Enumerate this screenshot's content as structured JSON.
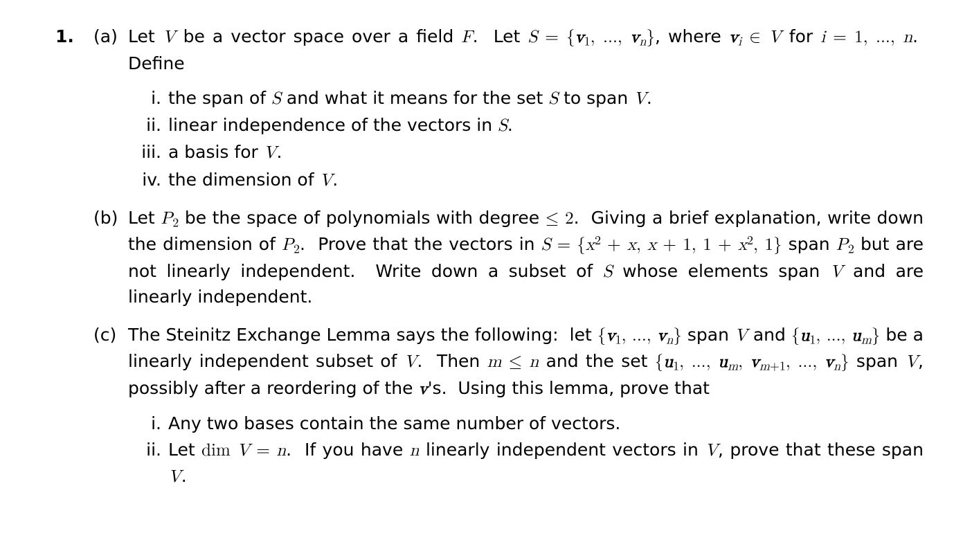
{
  "number": "1.",
  "parts": {
    "a": {
      "label": "(a)",
      "intro_html": "Let <span class='it'>V</span> be a vector space over a field <span class='it'>F</span>.&nbsp; Let <span class='it'>S</span> <span class='rm-math'>=</span> <span class='rm-math'>{</span><span class='bi'>v</span><sub class='nrm'>1</sub><span class='rm-math'>, ..., </span><span class='bi'>v</span><sub>n</sub><span class='rm-math'>}</span>, where <span class='bi'>v</span><sub>i</sub> <span class='rm-math'>&isin;</span> <span class='it'>V</span> for <span class='it'>i</span> <span class='rm-math'>= 1, ..., </span><span class='it'>n</span>.&nbsp; Define",
      "items": {
        "i": {
          "label": "i.",
          "html": "the span of <span class='it'>S</span> and what it means for the set <span class='it'>S</span> to span <span class='it'>V</span>."
        },
        "ii": {
          "label": "ii.",
          "html": "linear independence of the vectors in <span class='it'>S</span>."
        },
        "iii": {
          "label": "iii.",
          "html": "a basis for <span class='it'>V</span>."
        },
        "iv": {
          "label": "iv.",
          "html": "the dimension of <span class='it'>V</span>."
        }
      }
    },
    "b": {
      "label": "(b)",
      "html": "Let <span class='it'>P</span><sub class='nrm'>2</sub> be the space of polynomials with degree <span class='rm-math'>&le; 2</span>.&nbsp; Giving a brief explanation, write down the dimension of <span class='it'>P</span><sub class='nrm'>2</sub>.&nbsp; Prove that the vectors in <span class='it'>S</span> <span class='rm-math'>=</span> <span class='rm-math'>{</span><span class='it'>x</span><sup>2</sup> <span class='rm-math'>+</span> <span class='it'>x</span><span class='rm-math'>,</span> <span class='it'>x</span> <span class='rm-math'>+ 1, 1 +</span> <span class='it'>x</span><sup>2</sup><span class='rm-math'>, 1}</span> span <span class='it'>P</span><sub class='nrm'>2</sub> but are not linearly independent.&nbsp; Write down a subset of <span class='it'>S</span> whose elements span <span class='it'>V</span> and are linearly independent."
    },
    "c": {
      "label": "(c)",
      "intro_html": "The Steinitz Exchange Lemma says the following:&nbsp; let <span class='rm-math'>{</span><span class='bi'>v</span><sub class='nrm'>1</sub><span class='rm-math'>, ..., </span><span class='bi'>v</span><sub>n</sub><span class='rm-math'>}</span> span <span class='it'>V</span> and <span class='rm-math'>{</span><span class='bi'>u</span><sub class='nrm'>1</sub><span class='rm-math'>, ..., </span><span class='bi'>u</span><sub>m</sub><span class='rm-math'>}</span> be a linearly independent subset of <span class='it'>V</span>.&nbsp; Then <span class='it'>m</span> <span class='rm-math'>&le;</span> <span class='it'>n</span> and the set <span class='rm-math'>{</span><span class='bi'>u</span><sub class='nrm'>1</sub><span class='rm-math'>, ..., </span><span class='bi'>u</span><sub>m</sub><span class='rm-math'>, </span><span class='bi'>v</span><sub>m<span class='rm-math'>+1</span></sub><span class='rm-math'>, ..., </span><span class='bi'>v</span><sub>n</sub><span class='rm-math'>}</span> span <span class='it'>V</span>, possibly after a reordering of the <span class='bi'>v</span>'s.&nbsp; Using this lemma, prove that",
      "items": {
        "i": {
          "label": "i.",
          "html": "Any two bases contain the same number of vectors."
        },
        "ii": {
          "label": "ii.",
          "html": "Let <span class='rm-math'>dim</span> <span class='it'>V</span> <span class='rm-math'>=</span> <span class='it'>n</span>.&nbsp; If you have <span class='it'>n</span> linearly independent vectors in <span class='it'>V</span>, prove that these span <span class='it'>V</span>."
        }
      }
    }
  }
}
